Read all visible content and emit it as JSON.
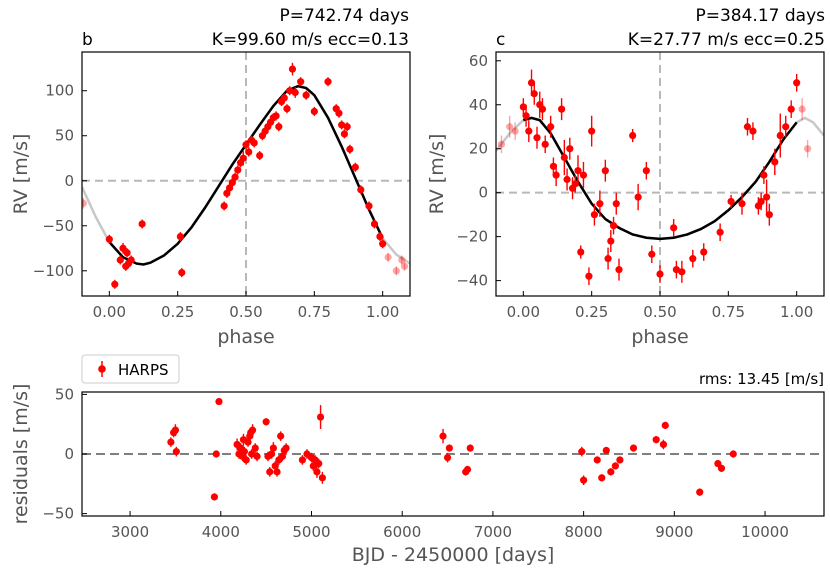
{
  "colors": {
    "series": "#ff0000",
    "model": "#000000",
    "model_ghost": "#c8c8c8",
    "guide": "#b8b8b8",
    "zero_dash": "#7f7f7f",
    "axis_text": "#555555"
  },
  "chart_data": [
    {
      "type": "scatter",
      "id": "b",
      "panel_label": "b",
      "title_line1": "P=742.74 days",
      "title_line2": "K=99.60 m/s  ecc=0.13",
      "xlabel": "phase",
      "ylabel": "RV [m/s]",
      "xlim": [
        -0.1,
        1.1
      ],
      "ylim": [
        -128,
        143
      ],
      "xticks": [
        0.0,
        0.25,
        0.5,
        0.75,
        1.0
      ],
      "xtick_labels": [
        "0.00",
        "0.25",
        "0.50",
        "0.75",
        "1.00"
      ],
      "yticks": [
        -100,
        -50,
        0,
        50,
        100
      ],
      "ytick_labels": [
        "−100",
        "−50",
        "0",
        "50",
        "100"
      ],
      "model": {
        "name": "Keplerian fit",
        "x": [
          -0.1,
          -0.05,
          0.0,
          0.05,
          0.1,
          0.125,
          0.15,
          0.2,
          0.25,
          0.3,
          0.35,
          0.4,
          0.45,
          0.5,
          0.55,
          0.6,
          0.65,
          0.69,
          0.72,
          0.75,
          0.8,
          0.85,
          0.9,
          0.95,
          1.0,
          1.05,
          1.1
        ],
        "y": [
          -7,
          -40,
          -68,
          -85,
          -92,
          -93,
          -91,
          -83,
          -70,
          -52,
          -30,
          -6,
          18,
          40,
          62,
          83,
          100,
          105,
          103,
          95,
          70,
          38,
          3,
          -32,
          -64,
          -82,
          -92
        ]
      },
      "series": [
        {
          "name": "HARPS",
          "x": [
            -0.095,
            0.0,
            0.02,
            0.04,
            0.05,
            0.06,
            0.065,
            0.07,
            0.08,
            0.12,
            0.26,
            0.265,
            0.42,
            0.43,
            0.44,
            0.45,
            0.46,
            0.47,
            0.48,
            0.49,
            0.5,
            0.51,
            0.52,
            0.53,
            0.55,
            0.56,
            0.57,
            0.58,
            0.59,
            0.6,
            0.61,
            0.62,
            0.63,
            0.64,
            0.65,
            0.66,
            0.67,
            0.68,
            0.7,
            0.72,
            0.75,
            0.8,
            0.83,
            0.84,
            0.85,
            0.86,
            0.87,
            0.88,
            0.9,
            0.92,
            0.95,
            0.97,
            0.99,
            1.0,
            1.02,
            1.05,
            1.07,
            1.08
          ],
          "y": [
            -25,
            -65,
            -115,
            -88,
            -75,
            -95,
            -80,
            -92,
            -88,
            -48,
            -62,
            -102,
            -28,
            -14,
            -8,
            -2,
            4,
            12,
            20,
            25,
            40,
            32,
            45,
            42,
            28,
            50,
            55,
            60,
            65,
            70,
            72,
            60,
            88,
            92,
            80,
            100,
            124,
            98,
            110,
            95,
            77,
            110,
            80,
            75,
            62,
            52,
            60,
            35,
            15,
            -10,
            -28,
            -48,
            -62,
            -70,
            -85,
            -100,
            -88,
            -95
          ],
          "err": [
            6,
            5,
            5,
            5,
            6,
            5,
            5,
            5,
            5,
            5,
            5,
            5,
            5,
            5,
            5,
            5,
            5,
            5,
            5,
            8,
            5,
            5,
            5,
            5,
            5,
            5,
            5,
            5,
            5,
            5,
            5,
            5,
            5,
            5,
            5,
            5,
            7,
            6,
            5,
            5,
            5,
            5,
            5,
            5,
            5,
            5,
            5,
            5,
            5,
            5,
            5,
            5,
            5,
            5,
            5,
            5,
            5,
            5
          ]
        }
      ]
    },
    {
      "type": "scatter",
      "id": "c",
      "panel_label": "c",
      "title_line1": "P=384.17 days",
      "title_line2": "K=27.77 m/s  ecc=0.25",
      "xlabel": "phase",
      "ylabel": "RV [m/s]",
      "xlim": [
        -0.1,
        1.1
      ],
      "ylim": [
        -47,
        64
      ],
      "xticks": [
        0.0,
        0.25,
        0.5,
        0.75,
        1.0
      ],
      "xtick_labels": [
        "0.00",
        "0.25",
        "0.50",
        "0.75",
        "1.00"
      ],
      "yticks": [
        -40,
        -20,
        0,
        20,
        40,
        60
      ],
      "ytick_labels": [
        "−40",
        "−20",
        "0",
        "20",
        "40",
        "60"
      ],
      "model": {
        "name": "Keplerian fit",
        "x": [
          -0.1,
          -0.05,
          0.0,
          0.03,
          0.06,
          0.1,
          0.15,
          0.2,
          0.25,
          0.3,
          0.35,
          0.4,
          0.45,
          0.5,
          0.55,
          0.6,
          0.65,
          0.7,
          0.75,
          0.8,
          0.85,
          0.9,
          0.95,
          1.0,
          1.03,
          1.06,
          1.1
        ],
        "y": [
          19,
          27,
          33,
          34,
          33,
          27,
          16,
          5,
          -5,
          -12,
          -16,
          -19,
          -20.5,
          -21,
          -20.5,
          -19,
          -16.5,
          -13,
          -8,
          -2,
          5,
          14,
          24,
          32,
          34,
          32,
          26
        ],
        "ghost_ranges": [
          [
            -0.1,
            0.0
          ],
          [
            1.0,
            1.1
          ]
        ]
      },
      "series": [
        {
          "name": "HARPS",
          "x": [
            -0.08,
            -0.05,
            -0.03,
            0.0,
            0.01,
            0.02,
            0.03,
            0.04,
            0.05,
            0.06,
            0.07,
            0.08,
            0.1,
            0.11,
            0.12,
            0.14,
            0.15,
            0.16,
            0.17,
            0.18,
            0.19,
            0.2,
            0.21,
            0.22,
            0.24,
            0.25,
            0.26,
            0.28,
            0.3,
            0.31,
            0.32,
            0.33,
            0.34,
            0.35,
            0.4,
            0.42,
            0.45,
            0.47,
            0.5,
            0.55,
            0.56,
            0.58,
            0.62,
            0.66,
            0.72,
            0.76,
            0.8,
            0.82,
            0.84,
            0.86,
            0.87,
            0.88,
            0.89,
            0.9,
            0.92,
            0.94,
            0.96,
            0.98,
            1.0,
            1.02,
            1.04
          ],
          "y": [
            22,
            30,
            28,
            39,
            35,
            28,
            50,
            45,
            25,
            40,
            38,
            22,
            30,
            12,
            8,
            38,
            16,
            6,
            20,
            2,
            4,
            10,
            -27,
            8,
            -38,
            28,
            -10,
            -5,
            10,
            -30,
            -22,
            -15,
            -5,
            -35,
            26,
            -2,
            10,
            -28,
            -37,
            -16,
            -35,
            -36,
            -30,
            -27,
            -18,
            -4,
            -5,
            30,
            28,
            -6,
            -4,
            8,
            -2,
            -10,
            14,
            26,
            30,
            38,
            50,
            38,
            20
          ],
          "err": [
            4,
            5,
            4,
            4,
            5,
            5,
            6,
            5,
            5,
            6,
            5,
            4,
            5,
            4,
            5,
            5,
            8,
            5,
            5,
            5,
            4,
            7,
            3,
            6,
            4,
            7,
            5,
            6,
            5,
            5,
            5,
            4,
            5,
            5,
            3,
            6,
            4,
            4,
            4,
            4,
            4,
            5,
            4,
            4,
            4,
            3,
            5,
            4,
            4,
            4,
            4,
            4,
            8,
            5,
            6,
            10,
            5,
            4,
            4,
            5,
            4
          ]
        }
      ]
    },
    {
      "type": "scatter",
      "id": "residuals",
      "xlabel": "BJD - 2450000 [days]",
      "ylabel": "residuals [m/s]",
      "xlim": [
        2470,
        10650
      ],
      "ylim": [
        -52,
        52
      ],
      "xticks": [
        3000,
        4000,
        5000,
        6000,
        7000,
        8000,
        9000,
        10000
      ],
      "xtick_labels": [
        "3000",
        "4000",
        "5000",
        "6000",
        "7000",
        "8000",
        "9000",
        "10000"
      ],
      "yticks": [
        -50,
        0,
        50
      ],
      "ytick_labels": [
        "−50",
        "0",
        "50"
      ],
      "legend": {
        "label": "HARPS",
        "position": "top-left-above"
      },
      "rms_label": "rms: 13.45 [m/s]",
      "series": [
        {
          "name": "HARPS",
          "x": [
            3450,
            3480,
            3500,
            3510,
            3930,
            3950,
            3980,
            4180,
            4200,
            4220,
            4240,
            4250,
            4260,
            4280,
            4300,
            4320,
            4330,
            4340,
            4350,
            4380,
            4400,
            4500,
            4520,
            4540,
            4560,
            4580,
            4600,
            4620,
            4640,
            4660,
            4680,
            4700,
            4720,
            4900,
            4950,
            5000,
            5020,
            5040,
            5060,
            5080,
            5100,
            5120,
            6450,
            6500,
            6520,
            6700,
            6720,
            6750,
            7980,
            8000,
            8150,
            8200,
            8250,
            8300,
            8350,
            8400,
            8550,
            8800,
            8880,
            8900,
            9280,
            9480,
            9520,
            9650
          ],
          "y": [
            10,
            18,
            20,
            2,
            -36,
            0,
            44,
            8,
            0,
            5,
            -2,
            12,
            2,
            -5,
            10,
            15,
            18,
            0,
            20,
            5,
            -2,
            27,
            -2,
            -15,
            0,
            5,
            -10,
            -15,
            -5,
            15,
            -2,
            3,
            5,
            -5,
            0,
            -3,
            -10,
            -5,
            -15,
            -8,
            31,
            -20,
            15,
            -3,
            5,
            -15,
            -13,
            5,
            2,
            -22,
            -5,
            -20,
            3,
            -15,
            -10,
            -5,
            5,
            12,
            8,
            24,
            -32,
            -8,
            -12,
            0
          ],
          "err": [
            4,
            4,
            5,
            4,
            3,
            3,
            2,
            5,
            4,
            4,
            4,
            5,
            4,
            4,
            4,
            4,
            4,
            4,
            5,
            4,
            4,
            3,
            4,
            4,
            4,
            5,
            4,
            4,
            4,
            4,
            4,
            4,
            4,
            4,
            4,
            4,
            4,
            4,
            5,
            4,
            10,
            5,
            6,
            4,
            3,
            3,
            3,
            3,
            4,
            4,
            3,
            3,
            3,
            3,
            3,
            3,
            3,
            3,
            4,
            3,
            3,
            3,
            3,
            3
          ]
        }
      ]
    }
  ]
}
